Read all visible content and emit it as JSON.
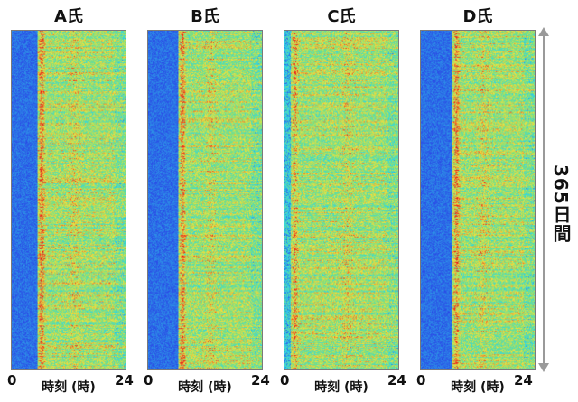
{
  "chart_data": {
    "type": "heatmap",
    "panels": [
      {
        "title": "A氏",
        "x_start": "0",
        "x_end": "24",
        "xlabel": "時刻 (時)"
      },
      {
        "title": "B氏",
        "x_start": "0",
        "x_end": "24",
        "xlabel": "時刻 (時)"
      },
      {
        "title": "C氏",
        "x_start": "0",
        "x_end": "24",
        "xlabel": "時刻 (時)"
      },
      {
        "title": "D氏",
        "x_start": "0",
        "x_end": "24",
        "xlabel": "時刻 (時)"
      }
    ],
    "ylabel": "365日間",
    "x_range": [
      0,
      24
    ],
    "y_days": 365,
    "colormap": [
      "#2a3ee6",
      "#2fd6e8",
      "#7fe07a",
      "#f0e040",
      "#e62a1e"
    ]
  }
}
